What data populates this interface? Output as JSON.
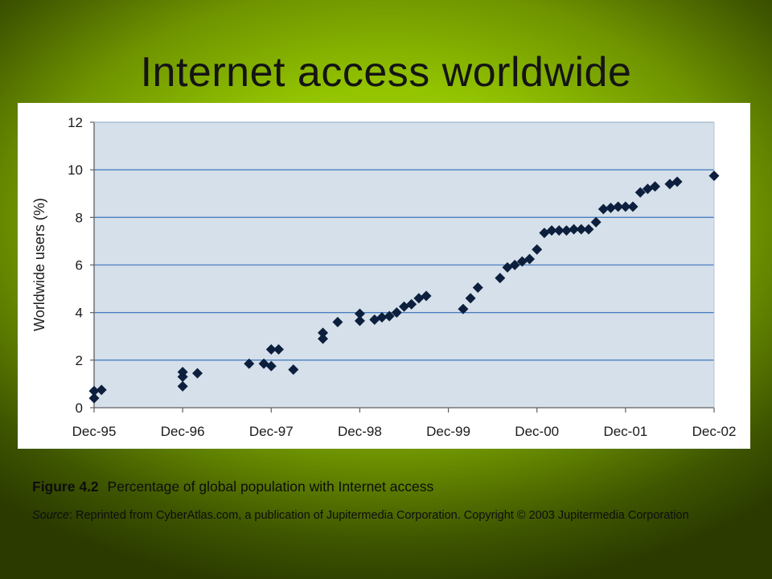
{
  "slide": {
    "title": "Internet access worldwide"
  },
  "caption": {
    "figure_number": "Figure 4.2",
    "text": "Percentage of global population with Internet access"
  },
  "source": {
    "label": "Source",
    "text": ": Reprinted from CyberAtlas.com, a publication of Jupitermedia Corporation. Copyright © 2003 Jupitermedia Corporation"
  },
  "colors": {
    "plot_background": "#d6e0ea",
    "gridline": "#4a7fc0",
    "marker": "#0c1f3d",
    "axis": "#5f5f5f"
  },
  "chart_data": {
    "type": "scatter",
    "marker": "diamond",
    "title": "",
    "xlabel": "",
    "ylabel": "Worldwide users (%)",
    "x_ticks": [
      "Dec-95",
      "Dec-96",
      "Dec-97",
      "Dec-98",
      "Dec-99",
      "Dec-00",
      "Dec-01",
      "Dec-02"
    ],
    "y_ticks": [
      0,
      2,
      4,
      6,
      8,
      10,
      12
    ],
    "xlim": [
      "1995-12",
      "2002-12"
    ],
    "ylim": [
      0,
      12
    ],
    "grid": "horizontal",
    "legend": "none",
    "x_unit": "month",
    "series": [
      {
        "points": [
          {
            "x": "1995-12",
            "y": 0.4
          },
          {
            "x": "1995-12",
            "y": 0.7
          },
          {
            "x": "1996-01",
            "y": 0.75
          },
          {
            "x": "1996-12",
            "y": 0.9
          },
          {
            "x": "1996-12",
            "y": 1.3
          },
          {
            "x": "1996-12",
            "y": 1.5
          },
          {
            "x": "1997-02",
            "y": 1.45
          },
          {
            "x": "1997-09",
            "y": 1.85
          },
          {
            "x": "1997-11",
            "y": 1.85
          },
          {
            "x": "1997-12",
            "y": 1.75
          },
          {
            "x": "1997-12",
            "y": 2.45
          },
          {
            "x": "1998-01",
            "y": 2.45
          },
          {
            "x": "1998-03",
            "y": 1.6
          },
          {
            "x": "1998-07",
            "y": 2.9
          },
          {
            "x": "1998-07",
            "y": 3.15
          },
          {
            "x": "1998-09",
            "y": 3.6
          },
          {
            "x": "1998-12",
            "y": 3.65
          },
          {
            "x": "1998-12",
            "y": 3.95
          },
          {
            "x": "1999-02",
            "y": 3.7
          },
          {
            "x": "1999-03",
            "y": 3.8
          },
          {
            "x": "1999-04",
            "y": 3.85
          },
          {
            "x": "1999-05",
            "y": 4.0
          },
          {
            "x": "1999-06",
            "y": 4.25
          },
          {
            "x": "1999-07",
            "y": 4.35
          },
          {
            "x": "1999-08",
            "y": 4.6
          },
          {
            "x": "1999-09",
            "y": 4.7
          },
          {
            "x": "2000-02",
            "y": 4.15
          },
          {
            "x": "2000-03",
            "y": 4.6
          },
          {
            "x": "2000-04",
            "y": 5.05
          },
          {
            "x": "2000-07",
            "y": 5.45
          },
          {
            "x": "2000-08",
            "y": 5.9
          },
          {
            "x": "2000-09",
            "y": 6.0
          },
          {
            "x": "2000-10",
            "y": 6.15
          },
          {
            "x": "2000-11",
            "y": 6.25
          },
          {
            "x": "2000-12",
            "y": 6.65
          },
          {
            "x": "2001-01",
            "y": 7.35
          },
          {
            "x": "2001-02",
            "y": 7.45
          },
          {
            "x": "2001-03",
            "y": 7.45
          },
          {
            "x": "2001-04",
            "y": 7.45
          },
          {
            "x": "2001-05",
            "y": 7.5
          },
          {
            "x": "2001-06",
            "y": 7.5
          },
          {
            "x": "2001-07",
            "y": 7.5
          },
          {
            "x": "2001-08",
            "y": 7.8
          },
          {
            "x": "2001-09",
            "y": 8.35
          },
          {
            "x": "2001-10",
            "y": 8.4
          },
          {
            "x": "2001-11",
            "y": 8.45
          },
          {
            "x": "2001-12",
            "y": 8.45
          },
          {
            "x": "2002-01",
            "y": 8.45
          },
          {
            "x": "2002-02",
            "y": 9.05
          },
          {
            "x": "2002-03",
            "y": 9.2
          },
          {
            "x": "2002-04",
            "y": 9.3
          },
          {
            "x": "2002-06",
            "y": 9.4
          },
          {
            "x": "2002-07",
            "y": 9.5
          },
          {
            "x": "2002-12",
            "y": 9.75
          }
        ]
      }
    ]
  }
}
